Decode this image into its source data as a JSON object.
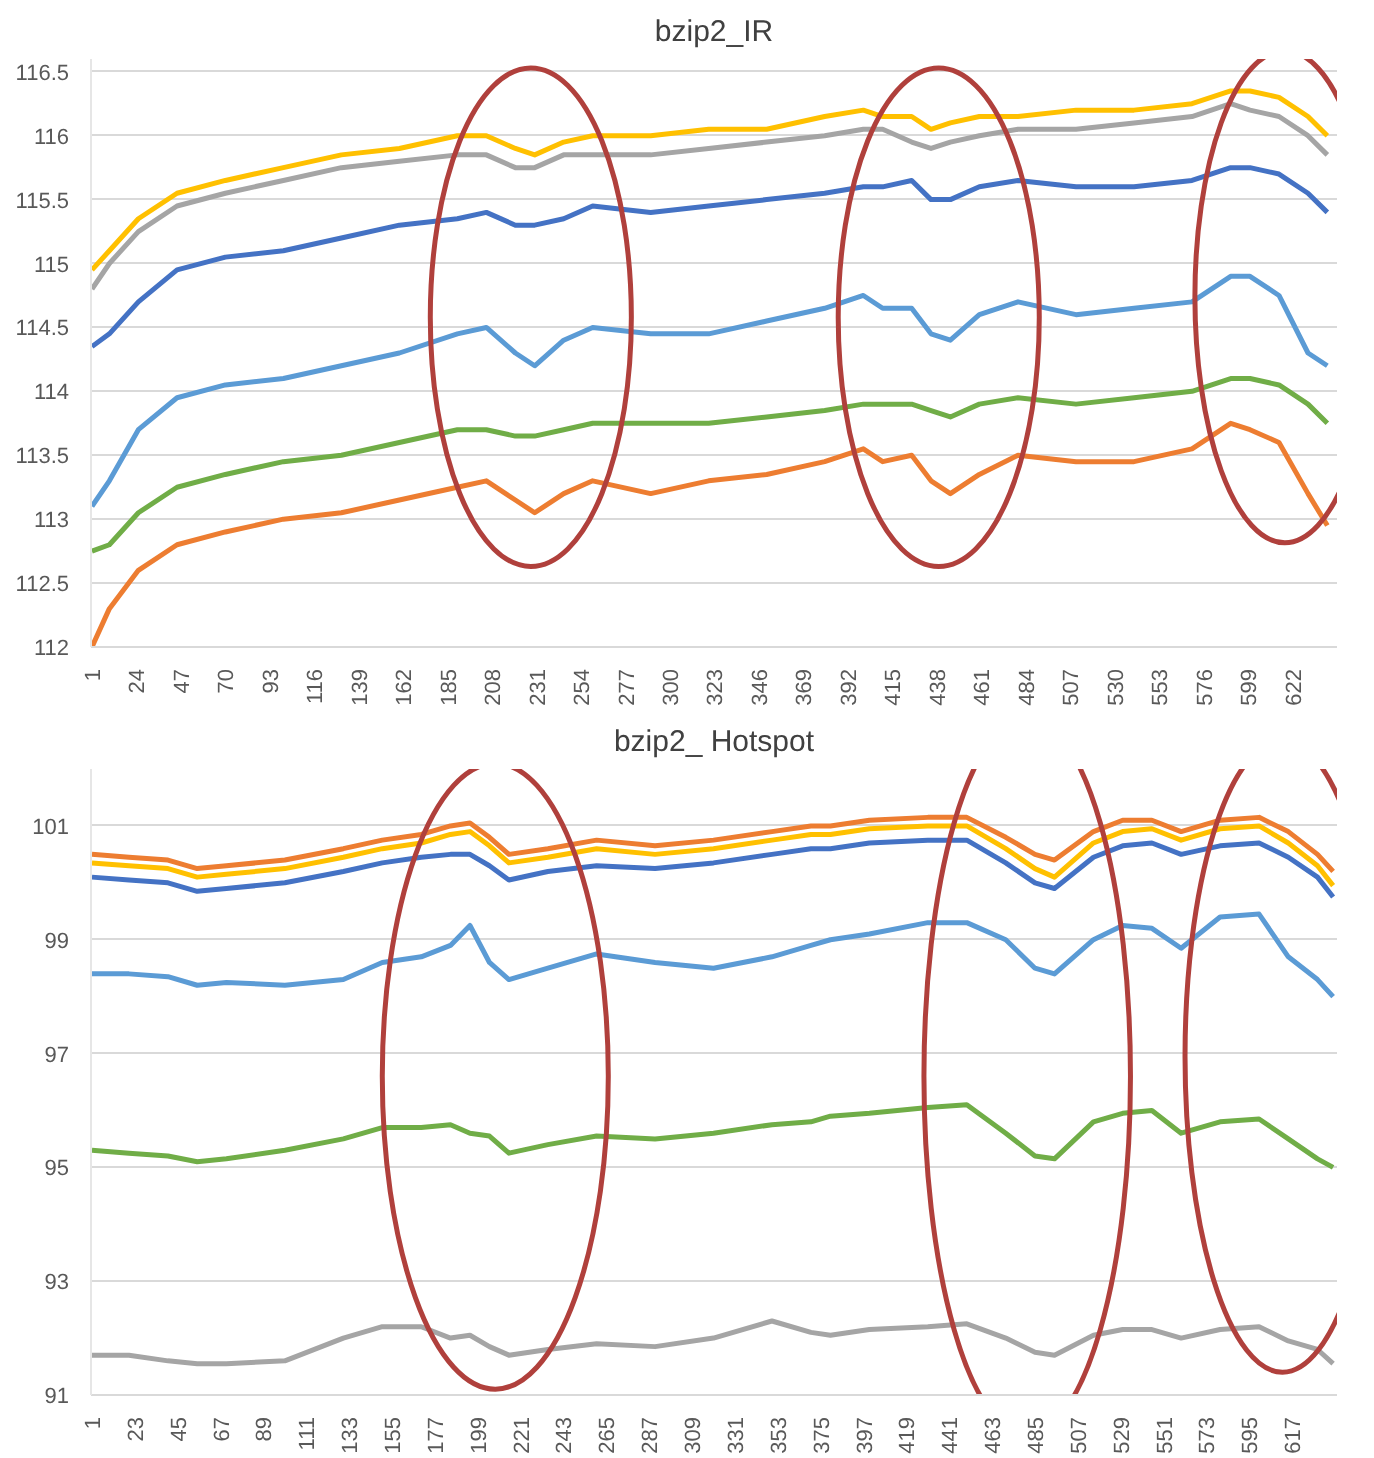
{
  "chart_data": [
    {
      "type": "line",
      "title": "bzip2_IR",
      "grid": "y",
      "marker": "none",
      "line_style": "solid",
      "x": [
        1,
        10,
        25,
        45,
        70,
        100,
        130,
        160,
        190,
        205,
        220,
        230,
        245,
        260,
        290,
        320,
        350,
        380,
        400,
        410,
        425,
        435,
        445,
        460,
        480,
        510,
        540,
        570,
        590,
        600,
        615,
        630,
        640
      ],
      "xlim": [
        0.5,
        645
      ],
      "xticks": [
        1,
        24,
        47,
        70,
        93,
        116,
        139,
        162,
        185,
        208,
        231,
        254,
        277,
        300,
        323,
        346,
        369,
        392,
        415,
        438,
        461,
        484,
        507,
        530,
        553,
        576,
        599,
        622
      ],
      "ylim": [
        112,
        116.6
      ],
      "yticks": [
        112,
        112.5,
        113,
        113.5,
        114,
        114.5,
        115,
        115.5,
        116,
        116.5
      ],
      "series": [
        {
          "color": "#ffc000",
          "values": [
            114.95,
            115.1,
            115.35,
            115.55,
            115.65,
            115.75,
            115.85,
            115.9,
            116.0,
            116.0,
            115.9,
            115.85,
            115.95,
            116.0,
            116.0,
            116.05,
            116.05,
            116.15,
            116.2,
            116.15,
            116.15,
            116.05,
            116.1,
            116.15,
            116.15,
            116.2,
            116.2,
            116.25,
            116.35,
            116.35,
            116.3,
            116.15,
            116.0
          ]
        },
        {
          "color": "#a5a5a5",
          "values": [
            114.8,
            115.0,
            115.25,
            115.45,
            115.55,
            115.65,
            115.75,
            115.8,
            115.85,
            115.85,
            115.75,
            115.75,
            115.85,
            115.85,
            115.85,
            115.9,
            115.95,
            116.0,
            116.05,
            116.05,
            115.95,
            115.9,
            115.95,
            116.0,
            116.05,
            116.05,
            116.1,
            116.15,
            116.25,
            116.2,
            116.15,
            116.0,
            115.85
          ]
        },
        {
          "color": "#4472c4",
          "values": [
            114.35,
            114.45,
            114.7,
            114.95,
            115.05,
            115.1,
            115.2,
            115.3,
            115.35,
            115.4,
            115.3,
            115.3,
            115.35,
            115.45,
            115.4,
            115.45,
            115.5,
            115.55,
            115.6,
            115.6,
            115.65,
            115.5,
            115.5,
            115.6,
            115.65,
            115.6,
            115.6,
            115.65,
            115.75,
            115.75,
            115.7,
            115.55,
            115.4
          ]
        },
        {
          "color": "#5b9bd5",
          "values": [
            113.1,
            113.3,
            113.7,
            113.95,
            114.05,
            114.1,
            114.2,
            114.3,
            114.45,
            114.5,
            114.3,
            114.2,
            114.4,
            114.5,
            114.45,
            114.45,
            114.55,
            114.65,
            114.75,
            114.65,
            114.65,
            114.45,
            114.4,
            114.6,
            114.7,
            114.6,
            114.65,
            114.7,
            114.9,
            114.9,
            114.75,
            114.3,
            114.2
          ]
        },
        {
          "color": "#70ad47",
          "values": [
            112.75,
            112.8,
            113.05,
            113.25,
            113.35,
            113.45,
            113.5,
            113.6,
            113.7,
            113.7,
            113.65,
            113.65,
            113.7,
            113.75,
            113.75,
            113.75,
            113.8,
            113.85,
            113.9,
            113.9,
            113.9,
            113.85,
            113.8,
            113.9,
            113.95,
            113.9,
            113.95,
            114.0,
            114.1,
            114.1,
            114.05,
            113.9,
            113.75
          ]
        },
        {
          "color": "#ed7d31",
          "values": [
            112.0,
            112.3,
            112.6,
            112.8,
            112.9,
            113.0,
            113.05,
            113.15,
            113.25,
            113.3,
            113.15,
            113.05,
            113.2,
            113.3,
            113.2,
            113.3,
            113.35,
            113.45,
            113.55,
            113.45,
            113.5,
            113.3,
            113.2,
            113.35,
            113.5,
            113.45,
            113.45,
            113.55,
            113.75,
            113.7,
            113.6,
            113.2,
            112.95
          ]
        }
      ]
    },
    {
      "type": "line",
      "title": "bzip2_ Hotspot",
      "grid": "y",
      "marker": "none",
      "line_style": "solid",
      "x": [
        1,
        20,
        40,
        55,
        70,
        100,
        130,
        150,
        170,
        185,
        195,
        205,
        215,
        235,
        260,
        290,
        320,
        350,
        370,
        380,
        400,
        430,
        450,
        470,
        485,
        495,
        515,
        530,
        545,
        560,
        580,
        600,
        615,
        630,
        638
      ],
      "xlim": [
        0.5,
        640
      ],
      "xticks": [
        1,
        23,
        45,
        67,
        89,
        111,
        133,
        155,
        177,
        199,
        221,
        243,
        265,
        287,
        309,
        331,
        353,
        375,
        397,
        419,
        441,
        463,
        485,
        507,
        529,
        551,
        573,
        595,
        617
      ],
      "ylim": [
        91,
        102
      ],
      "yticks": [
        91,
        93,
        95,
        97,
        99,
        101
      ],
      "series": [
        {
          "color": "#ed7d31",
          "values": [
            100.5,
            100.45,
            100.4,
            100.25,
            100.3,
            100.4,
            100.6,
            100.75,
            100.85,
            101.0,
            101.05,
            100.8,
            100.5,
            100.6,
            100.75,
            100.65,
            100.75,
            100.9,
            101.0,
            101.0,
            101.1,
            101.15,
            101.15,
            100.8,
            100.5,
            100.4,
            100.9,
            101.1,
            101.1,
            100.9,
            101.1,
            101.15,
            100.9,
            100.5,
            100.2
          ]
        },
        {
          "color": "#ffc000",
          "values": [
            100.35,
            100.3,
            100.25,
            100.1,
            100.15,
            100.25,
            100.45,
            100.6,
            100.7,
            100.85,
            100.9,
            100.65,
            100.35,
            100.45,
            100.6,
            100.5,
            100.6,
            100.75,
            100.85,
            100.85,
            100.95,
            101.0,
            101.0,
            100.6,
            100.25,
            100.1,
            100.7,
            100.9,
            100.95,
            100.75,
            100.95,
            101.0,
            100.7,
            100.3,
            99.95
          ]
        },
        {
          "color": "#4472c4",
          "values": [
            100.1,
            100.05,
            100.0,
            99.85,
            99.9,
            100.0,
            100.2,
            100.35,
            100.45,
            100.5,
            100.5,
            100.3,
            100.05,
            100.2,
            100.3,
            100.25,
            100.35,
            100.5,
            100.6,
            100.6,
            100.7,
            100.75,
            100.75,
            100.35,
            100.0,
            99.9,
            100.45,
            100.65,
            100.7,
            100.5,
            100.65,
            100.7,
            100.45,
            100.1,
            99.75
          ]
        },
        {
          "color": "#5b9bd5",
          "values": [
            98.4,
            98.4,
            98.35,
            98.2,
            98.25,
            98.2,
            98.3,
            98.6,
            98.7,
            98.9,
            99.25,
            98.6,
            98.3,
            98.5,
            98.75,
            98.6,
            98.5,
            98.7,
            98.9,
            99.0,
            99.1,
            99.3,
            99.3,
            99.0,
            98.5,
            98.4,
            99.0,
            99.25,
            99.2,
            98.85,
            99.4,
            99.45,
            98.7,
            98.3,
            98.0
          ]
        },
        {
          "color": "#70ad47",
          "values": [
            95.3,
            95.25,
            95.2,
            95.1,
            95.15,
            95.3,
            95.5,
            95.7,
            95.7,
            95.75,
            95.6,
            95.55,
            95.25,
            95.4,
            95.55,
            95.5,
            95.6,
            95.75,
            95.8,
            95.9,
            95.95,
            96.05,
            96.1,
            95.6,
            95.2,
            95.15,
            95.8,
            95.95,
            96.0,
            95.6,
            95.8,
            95.85,
            95.5,
            95.15,
            95.0
          ]
        },
        {
          "color": "#a5a5a5",
          "values": [
            91.7,
            91.7,
            91.6,
            91.55,
            91.55,
            91.6,
            92.0,
            92.2,
            92.2,
            92.0,
            92.05,
            91.85,
            91.7,
            91.8,
            91.9,
            91.85,
            92.0,
            92.3,
            92.1,
            92.05,
            92.15,
            92.2,
            92.25,
            92.0,
            91.75,
            91.7,
            92.05,
            92.15,
            92.15,
            92.0,
            92.15,
            92.2,
            91.95,
            91.8,
            91.55
          ]
        }
      ]
    }
  ]
}
